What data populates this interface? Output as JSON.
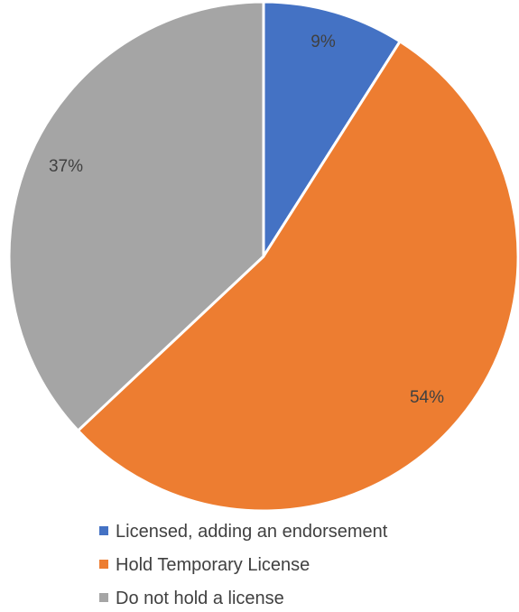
{
  "chart_data": {
    "type": "pie",
    "title": "",
    "start_angle_deg": 0,
    "direction": "clockwise",
    "legend_position": "bottom",
    "slices": [
      {
        "label": "Licensed, adding an endorsement",
        "value": 9,
        "display": "9%",
        "color": "#4472C4"
      },
      {
        "label": "Hold Temporary License",
        "value": 54,
        "display": "54%",
        "color": "#ED7D31"
      },
      {
        "label": "Do not hold a license",
        "value": 37,
        "display": "37%",
        "color": "#A5A5A5"
      }
    ]
  }
}
